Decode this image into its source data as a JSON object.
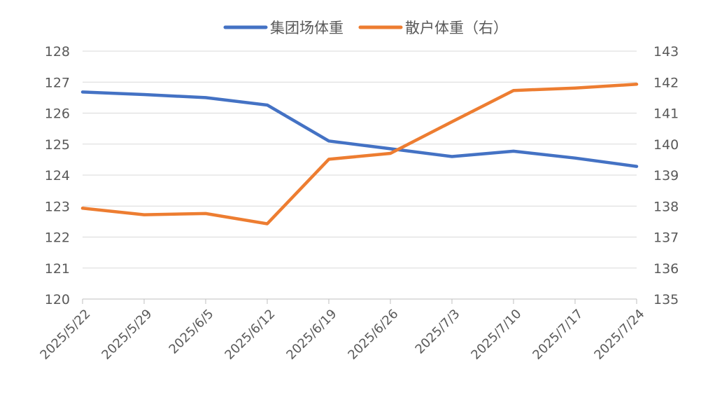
{
  "chart_data": {
    "type": "line",
    "dual_axis": true,
    "categories": [
      "2025/5/22",
      "2025/5/29",
      "2025/6/5",
      "2025/6/12",
      "2025/6/19",
      "2025/6/26",
      "2025/7/3",
      "2025/7/10",
      "2025/7/17",
      "2025/7/24"
    ],
    "series": [
      {
        "name": "集团场体重",
        "axis": "left",
        "color": "#4472C4",
        "values": [
          126.68,
          126.6,
          126.5,
          126.26,
          125.1,
          124.85,
          124.6,
          124.77,
          124.55,
          124.28
        ]
      },
      {
        "name": "散户体重（右）",
        "axis": "right",
        "color": "#ED7D31",
        "values": [
          137.93,
          137.72,
          137.76,
          137.43,
          139.51,
          139.7,
          140.72,
          141.73,
          141.81,
          141.93
        ]
      }
    ],
    "y_left": {
      "ylim": [
        120,
        128
      ],
      "ticks": [
        "120",
        "121",
        "122",
        "123",
        "124",
        "125",
        "126",
        "127",
        "128"
      ]
    },
    "y_right": {
      "ylim": [
        135,
        143
      ],
      "ticks": [
        "135",
        "136",
        "137",
        "138",
        "139",
        "140",
        "141",
        "142",
        "143"
      ]
    },
    "grid": true,
    "legend_position": "top-center"
  }
}
